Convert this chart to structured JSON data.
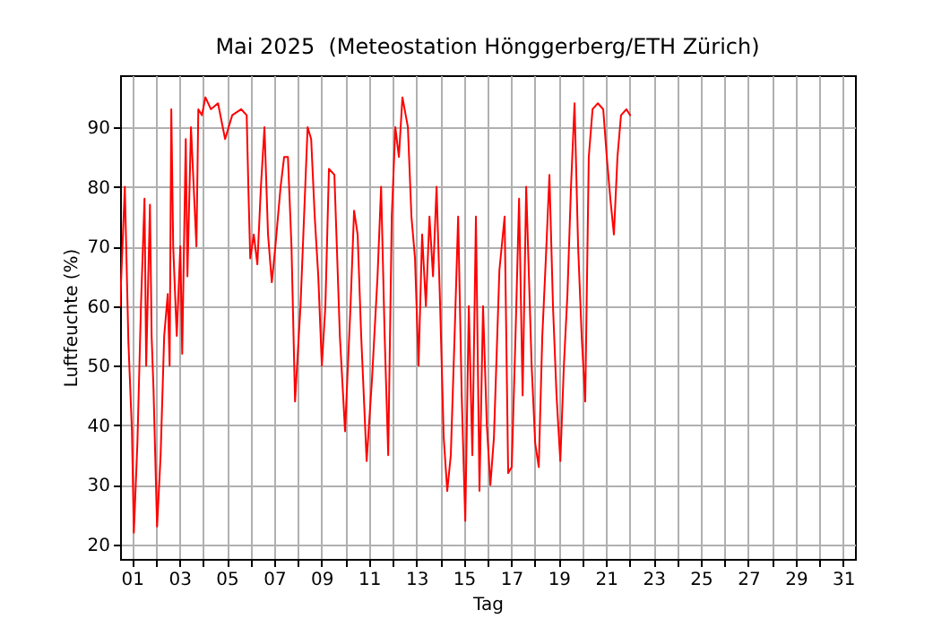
{
  "chart_data": {
    "type": "line",
    "title": "Mai 2025  (Meteostation Hönggerberg/ETH Zürich)",
    "xlabel": "Tag",
    "ylabel": "Luftfeuchte (%)",
    "x": [
      0.5,
      0.7,
      0.85,
      1.0,
      1.08,
      1.23,
      1.38,
      1.53,
      1.6,
      1.76,
      1.83,
      1.91,
      2.06,
      2.21,
      2.36,
      2.51,
      2.59,
      2.66,
      2.74,
      2.89,
      3.04,
      3.12,
      3.27,
      3.34,
      3.49,
      3.72,
      3.8,
      3.95,
      4.1,
      4.33,
      4.63,
      4.93,
      5.23,
      5.61,
      5.84,
      5.91,
      5.99,
      6.14,
      6.29,
      6.44,
      6.59,
      6.74,
      6.9,
      7.05,
      7.27,
      7.42,
      7.58,
      7.73,
      7.88,
      8.11,
      8.26,
      8.41,
      8.56,
      8.71,
      8.86,
      9.01,
      9.16,
      9.31,
      9.54,
      9.77,
      9.99,
      10.22,
      10.37,
      10.52,
      10.67,
      10.9,
      11.13,
      11.36,
      11.51,
      11.66,
      11.81,
      11.96,
      12.11,
      12.26,
      12.41,
      12.64,
      12.79,
      12.94,
      13.09,
      13.24,
      13.4,
      13.55,
      13.7,
      13.85,
      14.0,
      14.15,
      14.3,
      14.45,
      14.61,
      14.76,
      14.91,
      15.06,
      15.21,
      15.36,
      15.51,
      15.66,
      15.81,
      15.97,
      16.12,
      16.27,
      16.5,
      16.72,
      16.87,
      17.02,
      17.18,
      17.33,
      17.48,
      17.63,
      17.86,
      18.01,
      18.16,
      18.31,
      18.46,
      18.61,
      18.76,
      18.91,
      19.07,
      19.22,
      19.37,
      19.52,
      19.67,
      19.82,
      19.97,
      20.12,
      20.27,
      20.43,
      20.65,
      20.88,
      21.03,
      21.18,
      21.33,
      21.48,
      21.63,
      21.86,
      22.01
    ],
    "series": [
      {
        "color": "#ff0000",
        "values": [
          60,
          80,
          54,
          39,
          22,
          37,
          60,
          78,
          50,
          77,
          55,
          46,
          23,
          35,
          55,
          62,
          50,
          93,
          70,
          55,
          70,
          52,
          88,
          65,
          90,
          70,
          93,
          92,
          95,
          93,
          94,
          88,
          92,
          93,
          92,
          80,
          68,
          72,
          67,
          80,
          90,
          72,
          64,
          70,
          80,
          85,
          85,
          70,
          44,
          60,
          75,
          90,
          88,
          75,
          65,
          50,
          60,
          83,
          82,
          55,
          39,
          60,
          76,
          72,
          55,
          34,
          48,
          65,
          80,
          55,
          35,
          75,
          90,
          85,
          95,
          90,
          75,
          68,
          50,
          72,
          60,
          75,
          65,
          80,
          60,
          38,
          29,
          35,
          55,
          75,
          45,
          24,
          60,
          35,
          75,
          29,
          60,
          40,
          30,
          38,
          66,
          75,
          32,
          33,
          55,
          78,
          45,
          80,
          50,
          37,
          33,
          55,
          68,
          82,
          60,
          45,
          34,
          50,
          62,
          80,
          94,
          70,
          55,
          44,
          85,
          93,
          94,
          93,
          85,
          78,
          72,
          85,
          92,
          93,
          92
        ]
      }
    ],
    "xlim": [
      0.5,
      31.5
    ],
    "ylim": [
      17.6,
      98.7
    ],
    "xticks": [
      {
        "value": 1,
        "label": "01"
      },
      {
        "value": 2,
        "label": null
      },
      {
        "value": 3,
        "label": "03"
      },
      {
        "value": 4,
        "label": null
      },
      {
        "value": 5,
        "label": "05"
      },
      {
        "value": 6,
        "label": null
      },
      {
        "value": 7,
        "label": "07"
      },
      {
        "value": 8,
        "label": null
      },
      {
        "value": 9,
        "label": "09"
      },
      {
        "value": 10,
        "label": null
      },
      {
        "value": 11,
        "label": "11"
      },
      {
        "value": 12,
        "label": null
      },
      {
        "value": 13,
        "label": "13"
      },
      {
        "value": 14,
        "label": null
      },
      {
        "value": 15,
        "label": "15"
      },
      {
        "value": 16,
        "label": null
      },
      {
        "value": 17,
        "label": "17"
      },
      {
        "value": 18,
        "label": null
      },
      {
        "value": 19,
        "label": "19"
      },
      {
        "value": 20,
        "label": null
      },
      {
        "value": 21,
        "label": "21"
      },
      {
        "value": 22,
        "label": null
      },
      {
        "value": 23,
        "label": "23"
      },
      {
        "value": 24,
        "label": null
      },
      {
        "value": 25,
        "label": "25"
      },
      {
        "value": 26,
        "label": null
      },
      {
        "value": 27,
        "label": "27"
      },
      {
        "value": 28,
        "label": null
      },
      {
        "value": 29,
        "label": "29"
      },
      {
        "value": 30,
        "label": null
      },
      {
        "value": 31,
        "label": "31"
      }
    ],
    "yticks": [
      20,
      30,
      40,
      50,
      60,
      70,
      80,
      90
    ],
    "grid": true,
    "marker": "none",
    "line_style": "solid"
  }
}
